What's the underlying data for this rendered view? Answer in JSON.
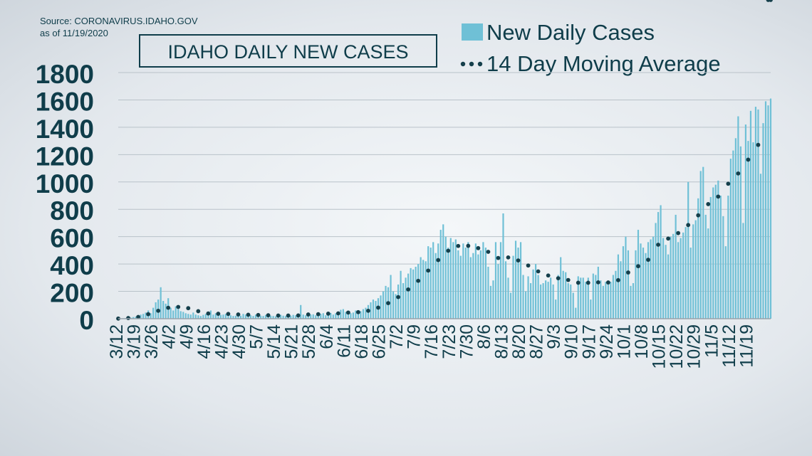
{
  "source": {
    "line1": "Source: CORONAVIRUS.IDAHO.GOV",
    "line2": "as of 11/19/2020"
  },
  "colors": {
    "bar": "#6fc0d6",
    "avg": "#153f4b",
    "text": "#0f3d4a",
    "grid": "#b9c2c9"
  },
  "chart_data": {
    "type": "bar",
    "title": "IDAHO DAILY NEW CASES",
    "xlabel": "",
    "ylabel": "",
    "ylim": [
      0,
      1800
    ],
    "yticks": [
      "0",
      "200",
      "400",
      "600",
      "800",
      "1000",
      "1200",
      "1400",
      "1600",
      "1800"
    ],
    "grid": true,
    "legend_position": "top-right",
    "start_date": "3/12",
    "end_date": "11/19",
    "xtick_labels": [
      "3/12",
      "3/19",
      "3/26",
      "4/2",
      "4/9",
      "4/16",
      "4/23",
      "4/30",
      "5/7",
      "5/14",
      "5/21",
      "5/28",
      "6/4",
      "6/11",
      "6/18",
      "6/25",
      "7/2",
      "7/9",
      "7/16",
      "7/23",
      "7/30",
      "8/6",
      "8/13",
      "8/20",
      "8/27",
      "9/3",
      "9/10",
      "9/17",
      "9/24",
      "10/1",
      "10/8",
      "10/15",
      "10/22",
      "10/29",
      "11/5",
      "11/12",
      "11/19"
    ],
    "series": [
      {
        "name": "New Daily Cases",
        "type": "bar",
        "values": [
          1,
          2,
          3,
          5,
          6,
          8,
          12,
          15,
          20,
          30,
          35,
          45,
          60,
          40,
          80,
          120,
          140,
          230,
          130,
          110,
          150,
          80,
          60,
          90,
          70,
          55,
          50,
          40,
          35,
          30,
          45,
          30,
          25,
          20,
          28,
          35,
          30,
          60,
          30,
          40,
          25,
          28,
          30,
          35,
          30,
          25,
          20,
          22,
          28,
          22,
          35,
          30,
          20,
          25,
          20,
          30,
          25,
          22,
          20,
          28,
          25,
          22,
          20,
          18,
          25,
          28,
          22,
          20,
          18,
          22,
          28,
          25,
          30,
          100,
          30,
          25,
          28,
          30,
          32,
          25,
          30,
          35,
          40,
          25,
          35,
          42,
          30,
          40,
          35,
          65,
          70,
          50,
          35,
          40,
          45,
          60,
          45,
          55,
          70,
          80,
          100,
          120,
          140,
          130,
          150,
          170,
          200,
          240,
          230,
          320,
          200,
          180,
          250,
          350,
          260,
          300,
          330,
          370,
          360,
          380,
          400,
          450,
          430,
          420,
          530,
          520,
          560,
          480,
          550,
          650,
          690,
          600,
          520,
          590,
          560,
          580,
          500,
          460,
          550,
          520,
          560,
          450,
          480,
          550,
          470,
          500,
          560,
          520,
          380,
          240,
          280,
          560,
          400,
          560,
          770,
          420,
          300,
          190,
          460,
          570,
          520,
          560,
          320,
          200,
          310,
          260,
          360,
          400,
          320,
          250,
          260,
          280,
          270,
          300,
          250,
          140,
          320,
          450,
          350,
          340,
          260,
          250,
          190,
          80,
          310,
          300,
          300,
          270,
          300,
          140,
          330,
          320,
          380,
          280,
          240,
          270,
          250,
          270,
          320,
          350,
          470,
          420,
          530,
          600,
          500,
          240,
          260,
          500,
          650,
          550,
          520,
          480,
          560,
          580,
          600,
          700,
          780,
          830,
          590,
          540,
          470,
          600,
          620,
          760,
          560,
          590,
          630,
          670,
          1000,
          520,
          690,
          720,
          880,
          1080,
          1110,
          760,
          660,
          890,
          960,
          980,
          1010,
          900,
          750,
          530,
          900,
          1170,
          1230,
          1320,
          1480,
          1260,
          700,
          1420,
          1300,
          1520,
          1290,
          1550,
          1530,
          1060,
          1430,
          1590,
          1560,
          1610
        ]
      },
      {
        "name": "14 Day Moving Average",
        "type": "line",
        "style": "dotted",
        "values": [
          1,
          2,
          3,
          4,
          5,
          6,
          8,
          10,
          13,
          17,
          21,
          26,
          33,
          38,
          44,
          52,
          58,
          65,
          71,
          75,
          80,
          82,
          84,
          86,
          86,
          85,
          84,
          82,
          77,
          72,
          66,
          60,
          55,
          50,
          45,
          41,
          38,
          38,
          37,
          37,
          36,
          35,
          35,
          35,
          35,
          34,
          33,
          32,
          31,
          30,
          30,
          29,
          29,
          29,
          28,
          28,
          27,
          26,
          26,
          25,
          25,
          24,
          24,
          24,
          23,
          23,
          23,
          23,
          23,
          23,
          23,
          24,
          24,
          30,
          30,
          30,
          31,
          31,
          31,
          32,
          33,
          34,
          35,
          35,
          37,
          38,
          38,
          39,
          39,
          41,
          43,
          44,
          45,
          45,
          46,
          47,
          48,
          49,
          51,
          54,
          58,
          63,
          69,
          75,
          81,
          87,
          94,
          104,
          114,
          128,
          138,
          147,
          158,
          173,
          185,
          199,
          214,
          230,
          245,
          260,
          277,
          296,
          313,
          330,
          352,
          374,
          394,
          410,
          429,
          449,
          470,
          486,
          497,
          510,
          519,
          526,
          532,
          531,
          531,
          532,
          533,
          529,
          526,
          522,
          516,
          508,
          502,
          500,
          489,
          473,
          457,
          455,
          444,
          445,
          463,
          459,
          448,
          432,
          427,
          428,
          426,
          426,
          418,
          402,
          389,
          375,
          366,
          356,
          346,
          334,
          328,
          320,
          316,
          313,
          307,
          298,
          296,
          297,
          296,
          290,
          283,
          281,
          279,
          264,
          263,
          263,
          262,
          261,
          263,
          263,
          263,
          264,
          266,
          265,
          265,
          266,
          265,
          264,
          266,
          268,
          282,
          290,
          305,
          323,
          338,
          345,
          355,
          366,
          384,
          395,
          408,
          423,
          431,
          448,
          474,
          505,
          541,
          572,
          578,
          585,
          586,
          582,
          586,
          601,
          626,
          647,
          656,
          663,
          685,
          700,
          720,
          736,
          756,
          785,
          811,
          827,
          838,
          850,
          848,
          871,
          893,
          914,
          938,
          964,
          987,
          999,
          1011,
          1035,
          1062,
          1082,
          1105,
          1125,
          1163,
          1185,
          1217,
          1244,
          1271,
          1302,
          1332
        ]
      }
    ]
  }
}
